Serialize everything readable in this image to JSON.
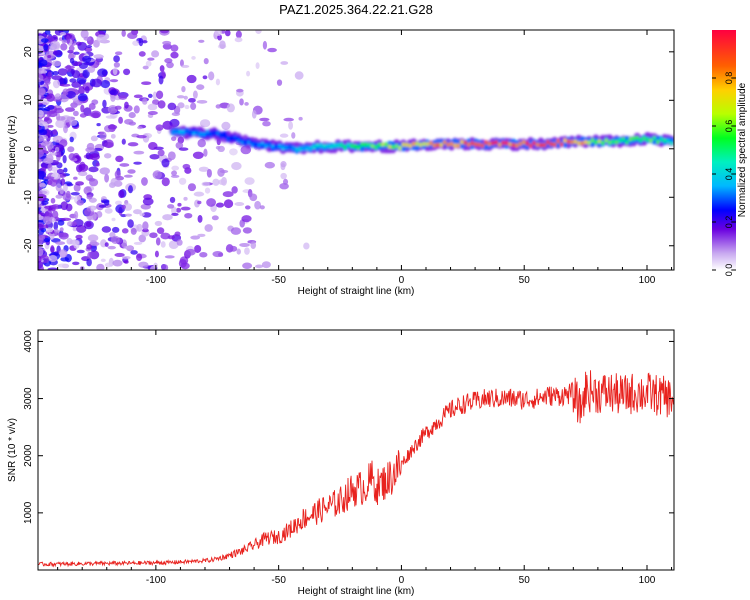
{
  "figure": {
    "title": "PAZ1.2025.364.22.21.G28"
  },
  "colors": {
    "snr_line": "#e8221e",
    "axis": "#000000",
    "background": "#ffffff"
  },
  "chart_data": [
    {
      "type": "heatmap",
      "title": "PAZ1.2025.364.22.21.G28",
      "xlabel": "Height of straight line (km)",
      "ylabel": "Frequency (Hz)",
      "xlim": [
        -148,
        111
      ],
      "ylim": [
        -25,
        24.5
      ],
      "xticks": [
        -100,
        -50,
        0,
        50,
        100
      ],
      "yticks": [
        -20,
        -10,
        0,
        10,
        20
      ],
      "colorbar": {
        "label": "Normalized spectral amplitude",
        "range": [
          0,
          1
        ],
        "ticks": [
          0.0,
          0.2,
          0.4,
          0.6,
          0.8
        ]
      },
      "ridge": {
        "description_points": [
          {
            "x": -90,
            "freq": 3.5,
            "amp": 0.35
          },
          {
            "x": -75,
            "freq": 3.0,
            "amp": 0.3
          },
          {
            "x": -60,
            "freq": 1.0,
            "amp": 0.3
          },
          {
            "x": -45,
            "freq": 0.0,
            "amp": 0.35
          },
          {
            "x": -30,
            "freq": 0.5,
            "amp": 0.45
          },
          {
            "x": -15,
            "freq": 0.5,
            "amp": 0.55
          },
          {
            "x": 0,
            "freq": 0.5,
            "amp": 0.7
          },
          {
            "x": 15,
            "freq": 1.0,
            "amp": 0.8
          },
          {
            "x": 30,
            "freq": 1.0,
            "amp": 0.9
          },
          {
            "x": 45,
            "freq": 1.0,
            "amp": 0.92
          },
          {
            "x": 60,
            "freq": 1.0,
            "amp": 0.95
          },
          {
            "x": 70,
            "freq": 1.5,
            "amp": 0.85
          },
          {
            "x": 85,
            "freq": 1.5,
            "amp": 0.55
          },
          {
            "x": 100,
            "freq": 2.0,
            "amp": 0.6
          },
          {
            "x": 110,
            "freq": 1.5,
            "amp": 0.45
          }
        ]
      }
    },
    {
      "type": "line",
      "title": "",
      "xlabel": "Height of straight line (km)",
      "ylabel": "SNR (10 * v/v)",
      "xlim": [
        -148,
        111
      ],
      "ylim": [
        0,
        4200
      ],
      "xticks": [
        -100,
        -50,
        0,
        50,
        100
      ],
      "yticks": [
        1000,
        2000,
        3000,
        4000
      ],
      "series": [
        {
          "name": "SNR",
          "x": [
            -148,
            -130,
            -110,
            -95,
            -85,
            -78,
            -72,
            -65,
            -58,
            -55,
            -50,
            -45,
            -40,
            -35,
            -30,
            -25,
            -20,
            -15,
            -12,
            -10,
            -5,
            0,
            5,
            10,
            15,
            20,
            25,
            30,
            35,
            40,
            45,
            50,
            55,
            60,
            65,
            70,
            73,
            75,
            80,
            85,
            90,
            95,
            100,
            105,
            111
          ],
          "values": [
            100,
            110,
            120,
            130,
            150,
            170,
            230,
            330,
            480,
            560,
            580,
            720,
            900,
            1000,
            1100,
            1200,
            1400,
            1450,
            1600,
            1450,
            1600,
            1850,
            2150,
            2400,
            2600,
            2800,
            2900,
            2950,
            3000,
            3000,
            3000,
            2980,
            3000,
            3050,
            3050,
            3100,
            2800,
            3150,
            3100,
            3100,
            3050,
            3100,
            3100,
            3050,
            3000
          ]
        }
      ]
    }
  ]
}
